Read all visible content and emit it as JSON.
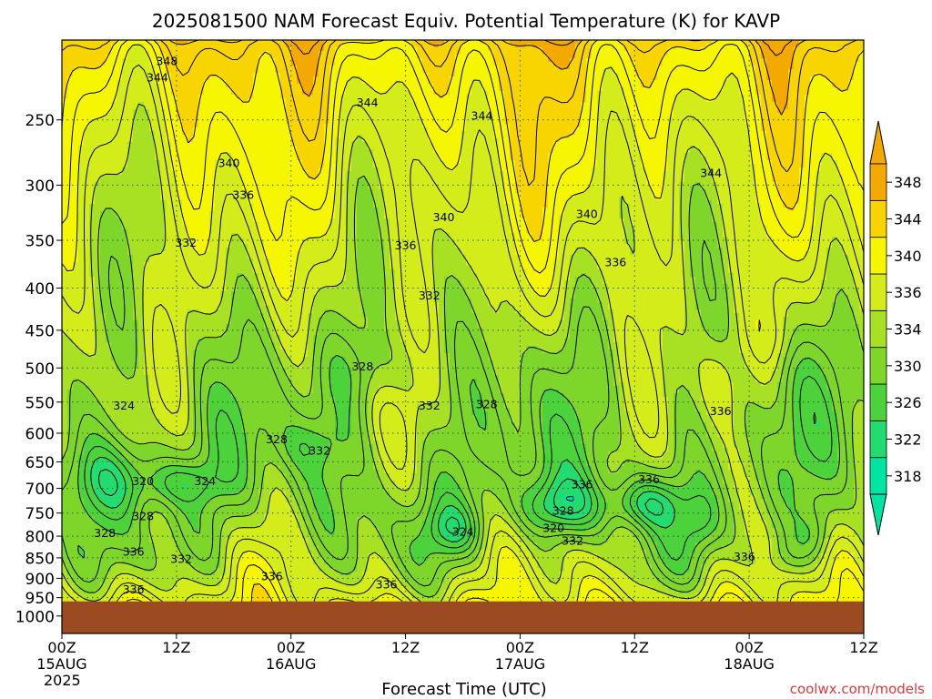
{
  "title": "2025081500 NAM Forecast Equiv. Potential Temperature (K) for KAVP",
  "credit": "coolwx.com/models",
  "colors": {
    "ground": "#9b4a22",
    "grid": "#2a5d2a",
    "credit": "#e03a3a",
    "contour": "#000000"
  },
  "chart_data": {
    "type": "heatmap",
    "title": "2025081500 NAM Forecast Equiv. Potential Temperature (K) for KAVP",
    "xlabel": "Forecast Time (UTC)",
    "ylabel": "",
    "x_ticks": [
      {
        "hour": 0,
        "label": "00Z",
        "sub": "15AUG",
        "sub2": "2025"
      },
      {
        "hour": 12,
        "label": "12Z",
        "sub": "",
        "sub2": ""
      },
      {
        "hour": 24,
        "label": "00Z",
        "sub": "16AUG",
        "sub2": ""
      },
      {
        "hour": 36,
        "label": "12Z",
        "sub": "",
        "sub2": ""
      },
      {
        "hour": 48,
        "label": "00Z",
        "sub": "17AUG",
        "sub2": ""
      },
      {
        "hour": 60,
        "label": "12Z",
        "sub": "",
        "sub2": ""
      },
      {
        "hour": 72,
        "label": "00Z",
        "sub": "18AUG",
        "sub2": ""
      },
      {
        "hour": 84,
        "label": "12Z",
        "sub": "",
        "sub2": ""
      }
    ],
    "xlim": [
      0,
      84
    ],
    "y_ticks": [
      250,
      300,
      350,
      400,
      450,
      500,
      550,
      600,
      650,
      700,
      750,
      800,
      850,
      900,
      950,
      1000
    ],
    "ylim_hpa": [
      200,
      1050
    ],
    "y_scale": "log-pressure",
    "ground_level_hpa": 960,
    "colorbar": {
      "levels": [
        318,
        322,
        326,
        330,
        334,
        336,
        340,
        344,
        348
      ],
      "tick_labels": [
        "318",
        "322",
        "326",
        "330",
        "334",
        "336",
        "340",
        "344",
        "348"
      ],
      "colors": [
        "#00e6a0",
        "#22dc70",
        "#4cd23a",
        "#7fd62a",
        "#a8e024",
        "#d4ec1a",
        "#f6f600",
        "#f8d400",
        "#f4a900"
      ],
      "extend": "both"
    },
    "contour_labels": [
      {
        "text": "348",
        "hour": 11,
        "hpa": 212
      },
      {
        "text": "344",
        "hour": 10,
        "hpa": 222
      },
      {
        "text": "344",
        "hour": 32,
        "hpa": 238
      },
      {
        "text": "344",
        "hour": 44,
        "hpa": 247
      },
      {
        "text": "344",
        "hour": 68,
        "hpa": 290
      },
      {
        "text": "340",
        "hour": 17.5,
        "hpa": 282
      },
      {
        "text": "340",
        "hour": 40,
        "hpa": 328
      },
      {
        "text": "340",
        "hour": 55,
        "hpa": 325
      },
      {
        "text": "336",
        "hour": 19,
        "hpa": 308
      },
      {
        "text": "336",
        "hour": 36,
        "hpa": 355
      },
      {
        "text": "336",
        "hour": 58,
        "hpa": 372
      },
      {
        "text": "336",
        "hour": 69,
        "hpa": 564
      },
      {
        "text": "336",
        "hour": 54.5,
        "hpa": 692
      },
      {
        "text": "336",
        "hour": 61.5,
        "hpa": 682
      },
      {
        "text": "336",
        "hour": 7.5,
        "hpa": 835
      },
      {
        "text": "336",
        "hour": 22,
        "hpa": 895
      },
      {
        "text": "336",
        "hour": 34,
        "hpa": 915
      },
      {
        "text": "336",
        "hour": 71.5,
        "hpa": 847
      },
      {
        "text": "336",
        "hour": 7.5,
        "hpa": 928
      },
      {
        "text": "332",
        "hour": 13,
        "hpa": 352
      },
      {
        "text": "332",
        "hour": 38.5,
        "hpa": 408
      },
      {
        "text": "332",
        "hour": 38.5,
        "hpa": 555
      },
      {
        "text": "332",
        "hour": 27,
        "hpa": 630
      },
      {
        "text": "332",
        "hour": 53.5,
        "hpa": 810
      },
      {
        "text": "332",
        "hour": 12.5,
        "hpa": 852
      },
      {
        "text": "328",
        "hour": 31.5,
        "hpa": 498
      },
      {
        "text": "328",
        "hour": 44.5,
        "hpa": 553
      },
      {
        "text": "328",
        "hour": 22.5,
        "hpa": 610
      },
      {
        "text": "328",
        "hour": 8.5,
        "hpa": 756
      },
      {
        "text": "328",
        "hour": 4.5,
        "hpa": 793
      },
      {
        "text": "328",
        "hour": 52.5,
        "hpa": 745
      },
      {
        "text": "324",
        "hour": 6.5,
        "hpa": 555
      },
      {
        "text": "324",
        "hour": 15,
        "hpa": 686
      },
      {
        "text": "324",
        "hour": 42,
        "hpa": 790
      },
      {
        "text": "320",
        "hour": 8.5,
        "hpa": 686
      },
      {
        "text": "320",
        "hour": 51.5,
        "hpa": 782
      }
    ]
  }
}
